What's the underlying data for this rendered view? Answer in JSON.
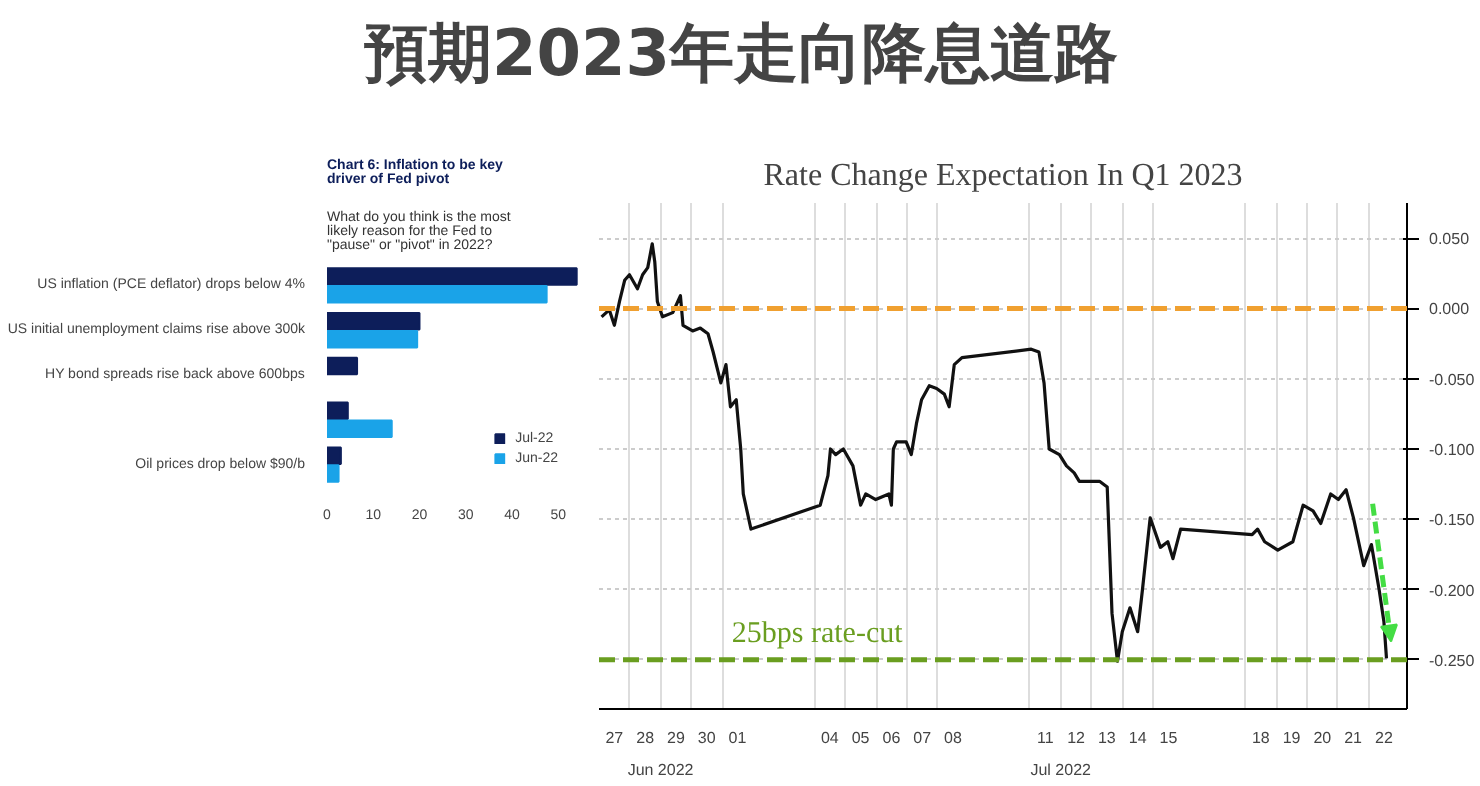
{
  "chart_data": [
    {
      "type": "other",
      "title": "預期2023年走向降息道路"
    },
    {
      "type": "bar",
      "orientation": "horizontal",
      "title": "Chart 6: Inflation to be key driver of Fed pivot",
      "subtitle": "What do you think is the most likely reason for the Fed to \"pause\" or \"pivot\" in 2022?",
      "categories": [
        "US inflation (PCE deflator) drops below 4%",
        "US initial unemployment claims rise above 300k",
        "HY bond spreads rise back above 600bps",
        null,
        "Oil prices drop below $90/b"
      ],
      "series": [
        {
          "name": "Jul-22",
          "color": "#0d1e5a",
          "values": [
            54,
            20,
            6.5,
            4.5,
            3
          ]
        },
        {
          "name": "Jun-22",
          "color": "#1aa3e8",
          "values": [
            47.5,
            19.5,
            null,
            14,
            2.5
          ]
        }
      ],
      "xlim": [
        0,
        54.5
      ],
      "xticks": [
        0,
        10,
        20,
        30,
        40,
        50
      ],
      "legend": "bottom right"
    },
    {
      "type": "line",
      "title": "Rate Change Expectation In Q1 2023",
      "x": [
        "2022-06-27T02:00",
        "2022-06-27T08:00",
        "2022-06-27T12:00",
        "2022-06-27T16:00",
        "2022-06-27T20:00",
        "2022-06-27T23:45",
        "2022-06-28T06:00",
        "2022-06-28T10:00",
        "2022-06-28T14:00",
        "2022-06-28T17:30",
        "2022-06-28T19:30",
        "2022-06-28T21:30",
        "2022-06-29T01:30",
        "2022-06-29T09:30",
        "2022-06-29T15:30",
        "2022-06-29T17:30",
        "2022-06-30T01:00",
        "2022-06-30T07:00",
        "2022-06-30T13:00",
        "2022-06-30T17:00",
        "2022-06-30T23:00",
        "2022-07-01T03:00",
        "2022-07-01T06:30",
        "2022-07-01T11:00",
        "2022-07-01T14:30",
        "2022-07-01T16:30",
        "2022-07-01T22:30",
        "2022-07-04T04:30",
        "2022-07-04T10:30",
        "2022-07-04T12:30",
        "2022-07-04T16:30",
        "2022-07-04T22:30",
        "2022-07-05T06:00",
        "2022-07-05T12:00",
        "2022-07-05T16:00",
        "2022-07-05T23:45",
        "2022-07-06T10:00",
        "2022-07-06T12:00",
        "2022-07-06T13:30",
        "2022-07-06T16:00",
        "2022-07-06T23:30",
        "2022-07-07T03:30",
        "2022-07-07T07:30",
        "2022-07-07T11:30",
        "2022-07-07T17:30",
        "2022-07-07T23:15",
        "2022-07-08T05:15",
        "2022-07-08T09:00",
        "2022-07-08T13:00",
        "2022-07-08T19:00",
        "2022-07-11T01:00",
        "2022-07-11T07:00",
        "2022-07-11T11:00",
        "2022-07-11T15:00",
        "2022-07-11T23:00",
        "2022-07-12T04:30",
        "2022-07-12T10:30",
        "2022-07-12T14:30",
        "2022-07-12T22:15",
        "2022-07-13T06:15",
        "2022-07-13T12:15",
        "2022-07-13T16:00",
        "2022-07-13T20:15",
        "2022-07-14T00:00",
        "2022-07-14T06:00",
        "2022-07-14T12:00",
        "2022-07-14T15:45",
        "2022-07-14T21:45",
        "2022-07-15T05:45",
        "2022-07-15T11:30",
        "2022-07-15T15:30",
        "2022-07-15T21:30",
        "2022-07-18T05:15",
        "2022-07-18T09:30",
        "2022-07-18T15:00",
        "2022-07-19T01:15",
        "2022-07-19T13:00",
        "2022-07-19T21:00",
        "2022-07-20T04:45",
        "2022-07-20T10:45",
        "2022-07-20T18:30",
        "2022-07-21T00:30",
        "2022-07-21T06:30",
        "2022-07-21T12:15",
        "2022-07-21T20:15",
        "2022-07-22T02:15",
        "2022-07-22T08:15",
        "2022-07-22T12:00",
        "2022-07-22T14:00"
      ],
      "series": [
        {
          "color": "#111111",
          "values": [
            -0.006,
            -0.001,
            -0.012,
            0.005,
            0.02,
            0.024,
            0.014,
            0.024,
            0.029,
            0.046,
            0.033,
            0.005,
            -0.006,
            -0.003,
            0.009,
            -0.012,
            -0.016,
            -0.014,
            -0.018,
            -0.031,
            -0.053,
            -0.04,
            -0.07,
            -0.065,
            -0.1,
            -0.132,
            -0.157,
            -0.14,
            -0.119,
            -0.1,
            -0.104,
            -0.1,
            -0.112,
            -0.14,
            -0.132,
            -0.136,
            -0.132,
            -0.14,
            -0.1,
            -0.095,
            -0.095,
            -0.104,
            -0.082,
            -0.065,
            -0.055,
            -0.057,
            -0.061,
            -0.07,
            -0.04,
            -0.035,
            -0.029,
            -0.031,
            -0.053,
            -0.1,
            -0.104,
            -0.112,
            -0.117,
            -0.123,
            -0.123,
            -0.123,
            -0.127,
            -0.217,
            -0.251,
            -0.23,
            -0.213,
            -0.23,
            -0.2,
            -0.149,
            -0.17,
            -0.166,
            -0.178,
            -0.157,
            -0.161,
            -0.157,
            -0.166,
            -0.172,
            -0.166,
            -0.14,
            -0.144,
            -0.153,
            -0.132,
            -0.136,
            -0.129,
            -0.149,
            -0.183,
            -0.168,
            -0.2,
            -0.223,
            -0.249
          ]
        }
      ],
      "xlim": [
        "2022-06-27T00:00",
        "2022-07-23T06:00"
      ],
      "xticks": [
        {
          "value": "2022-06-27T12:00",
          "label": "27"
        },
        {
          "value": "2022-06-28T12:00",
          "label": "28"
        },
        {
          "value": "2022-06-29T12:00",
          "label": "29"
        },
        {
          "value": "2022-06-30T12:00",
          "label": "30"
        },
        {
          "value": "2022-07-01T12:00",
          "label": "01"
        },
        {
          "value": "2022-07-04T12:00",
          "label": "04"
        },
        {
          "value": "2022-07-05T12:00",
          "label": "05"
        },
        {
          "value": "2022-07-06T12:00",
          "label": "06"
        },
        {
          "value": "2022-07-07T12:00",
          "label": "07"
        },
        {
          "value": "2022-07-08T12:00",
          "label": "08"
        },
        {
          "value": "2022-07-11T12:00",
          "label": "11"
        },
        {
          "value": "2022-07-12T12:00",
          "label": "12"
        },
        {
          "value": "2022-07-13T12:00",
          "label": "13"
        },
        {
          "value": "2022-07-14T12:00",
          "label": "14"
        },
        {
          "value": "2022-07-15T12:00",
          "label": "15"
        },
        {
          "value": "2022-07-18T12:00",
          "label": "18"
        },
        {
          "value": "2022-07-19T12:00",
          "label": "19"
        },
        {
          "value": "2022-07-20T12:00",
          "label": "20"
        },
        {
          "value": "2022-07-21T12:00",
          "label": "21"
        },
        {
          "value": "2022-07-22T12:00",
          "label": "22"
        },
        {
          "value": "2022-06-28",
          "label": null
        },
        {
          "value": "2022-06-29",
          "label": null
        },
        {
          "value": "2022-06-30",
          "label": null
        },
        {
          "value": "2022-07-01",
          "label": null
        },
        {
          "value": "2022-07-04",
          "label": null
        },
        {
          "value": "2022-07-05",
          "label": null
        },
        {
          "value": "2022-07-06",
          "label": null
        },
        {
          "value": "2022-07-07",
          "label": null
        },
        {
          "value": "2022-07-08",
          "label": null
        },
        {
          "value": "2022-07-11",
          "label": null
        },
        {
          "value": "2022-07-12",
          "label": null
        },
        {
          "value": "2022-07-13",
          "label": null
        },
        {
          "value": "2022-07-14",
          "label": null
        },
        {
          "value": "2022-07-15",
          "label": null
        },
        {
          "value": "2022-07-18",
          "label": null
        },
        {
          "value": "2022-07-19",
          "label": null
        },
        {
          "value": "2022-07-20",
          "label": null
        },
        {
          "value": "2022-07-21",
          "label": null
        },
        {
          "value": "2022-07-22",
          "label": null
        }
      ],
      "annotations": [
        "Jun 2022",
        "Jul 2022"
      ],
      "ylim": [
        -0.285,
        0.075
      ],
      "yticks": [
        {
          "value": 0.05,
          "label": "0.050"
        },
        {
          "value": 0,
          "label": "0.000"
        },
        {
          "value": -0.05,
          "label": "-0.050"
        },
        {
          "value": -0.1,
          "label": "-0.100"
        },
        {
          "value": -0.15,
          "label": "-0.150"
        },
        {
          "value": -0.2,
          "label": "-0.200"
        },
        {
          "value": -0.25,
          "label": "-0.250"
        }
      ],
      "grid": true,
      "ref_lines": [
        {
          "axis": "y",
          "value": 0,
          "label": null,
          "color": "#f0a030",
          "line_style": "dashed"
        },
        {
          "axis": "y",
          "value": -0.25,
          "label": "25bps rate-cut",
          "color": "#6a9e20",
          "line_style": "dashed"
        }
      ]
    }
  ]
}
